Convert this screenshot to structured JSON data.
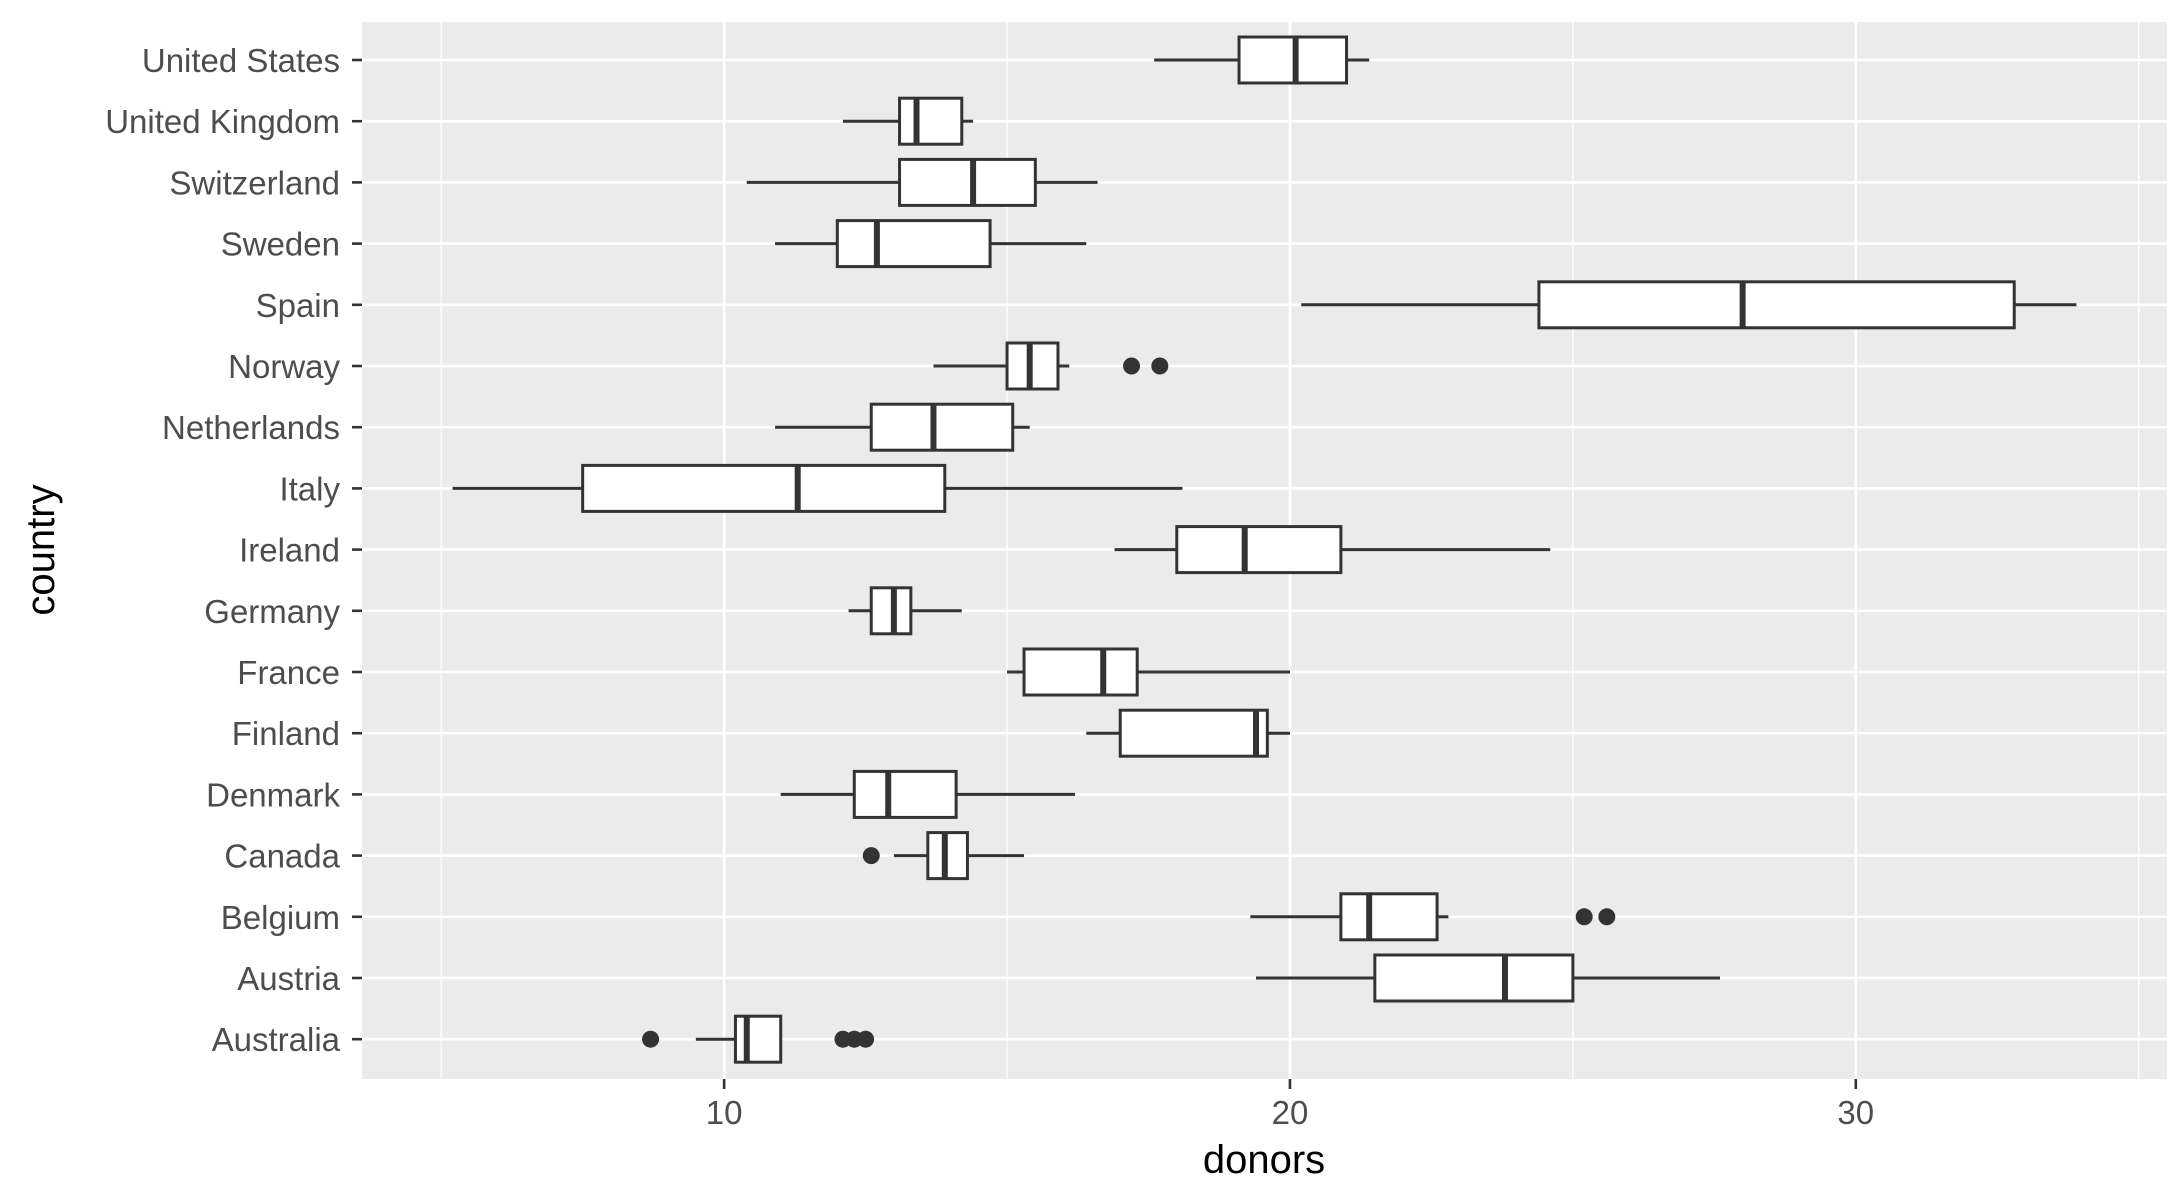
{
  "chart_data": {
    "type": "boxplot",
    "orientation": "horizontal",
    "title": "",
    "xlabel": "donors",
    "ylabel": "country",
    "xlim": [
      3.6,
      35.5
    ],
    "x_ticks": [
      10,
      20,
      30
    ],
    "grid": true,
    "legend": "none",
    "colors": {
      "panel": "#ebebeb",
      "grid": "#ffffff",
      "box_fill": "#ffffff",
      "box_stroke": "#333333",
      "outlier": "#333333"
    },
    "categories": [
      "United States",
      "United Kingdom",
      "Switzerland",
      "Sweden",
      "Spain",
      "Norway",
      "Netherlands",
      "Italy",
      "Ireland",
      "Germany",
      "France",
      "Finland",
      "Denmark",
      "Canada",
      "Belgium",
      "Austria",
      "Australia"
    ],
    "boxes": [
      {
        "category": "United States",
        "whisker_low": 17.6,
        "q1": 19.1,
        "median": 20.1,
        "q3": 21.0,
        "whisker_high": 21.4,
        "outliers": []
      },
      {
        "category": "United Kingdom",
        "whisker_low": 12.1,
        "q1": 13.1,
        "median": 13.4,
        "q3": 14.2,
        "whisker_high": 14.4,
        "outliers": []
      },
      {
        "category": "Switzerland",
        "whisker_low": 10.4,
        "q1": 13.1,
        "median": 14.4,
        "q3": 15.5,
        "whisker_high": 16.6,
        "outliers": []
      },
      {
        "category": "Sweden",
        "whisker_low": 10.9,
        "q1": 12.0,
        "median": 12.7,
        "q3": 14.7,
        "whisker_high": 16.4,
        "outliers": []
      },
      {
        "category": "Spain",
        "whisker_low": 20.2,
        "q1": 24.4,
        "median": 28.0,
        "q3": 32.8,
        "whisker_high": 33.9,
        "outliers": []
      },
      {
        "category": "Norway",
        "whisker_low": 13.7,
        "q1": 15.0,
        "median": 15.4,
        "q3": 15.9,
        "whisker_high": 16.1,
        "outliers": [
          17.2,
          17.7
        ]
      },
      {
        "category": "Netherlands",
        "whisker_low": 10.9,
        "q1": 12.6,
        "median": 13.7,
        "q3": 15.1,
        "whisker_high": 15.4,
        "outliers": []
      },
      {
        "category": "Italy",
        "whisker_low": 5.2,
        "q1": 7.5,
        "median": 11.3,
        "q3": 13.9,
        "whisker_high": 18.1,
        "outliers": []
      },
      {
        "category": "Ireland",
        "whisker_low": 16.9,
        "q1": 18.0,
        "median": 19.2,
        "q3": 20.9,
        "whisker_high": 24.6,
        "outliers": []
      },
      {
        "category": "Germany",
        "whisker_low": 12.2,
        "q1": 12.6,
        "median": 13.0,
        "q3": 13.3,
        "whisker_high": 14.2,
        "outliers": []
      },
      {
        "category": "France",
        "whisker_low": 15.0,
        "q1": 15.3,
        "median": 16.7,
        "q3": 17.3,
        "whisker_high": 20.0,
        "outliers": []
      },
      {
        "category": "Finland",
        "whisker_low": 16.4,
        "q1": 17.0,
        "median": 19.4,
        "q3": 19.6,
        "whisker_high": 20.0,
        "outliers": []
      },
      {
        "category": "Denmark",
        "whisker_low": 11.0,
        "q1": 12.3,
        "median": 12.9,
        "q3": 14.1,
        "whisker_high": 16.2,
        "outliers": []
      },
      {
        "category": "Canada",
        "whisker_low": 13.0,
        "q1": 13.6,
        "median": 13.9,
        "q3": 14.3,
        "whisker_high": 15.3,
        "outliers": [
          12.6
        ]
      },
      {
        "category": "Belgium",
        "whisker_low": 19.3,
        "q1": 20.9,
        "median": 21.4,
        "q3": 22.6,
        "whisker_high": 22.8,
        "outliers": [
          25.2,
          25.6
        ]
      },
      {
        "category": "Austria",
        "whisker_low": 19.4,
        "q1": 21.5,
        "median": 23.8,
        "q3": 25.0,
        "whisker_high": 27.6,
        "outliers": []
      },
      {
        "category": "Australia",
        "whisker_low": 9.5,
        "q1": 10.2,
        "median": 10.4,
        "q3": 11.0,
        "whisker_high": 11.0,
        "outliers": [
          8.7,
          12.1,
          12.3,
          12.5
        ]
      }
    ]
  }
}
